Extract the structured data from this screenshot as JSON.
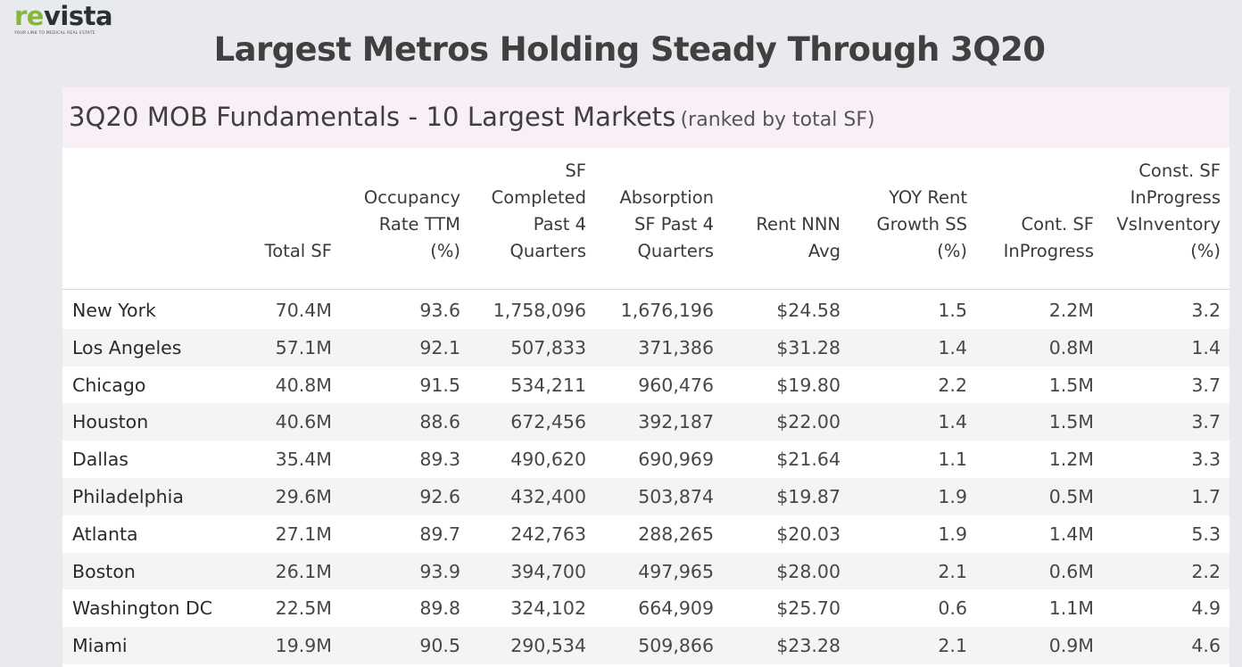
{
  "logo": {
    "word_part1": "re",
    "word_part2": "vista",
    "tagline": "YOUR LINK TO MEDICAL REAL ESTATE",
    "colors": {
      "accent": "#86b73d",
      "dark": "#2d3033"
    }
  },
  "page_title": "Largest Metros Holding Steady Through 3Q20",
  "chart_data": {
    "type": "table",
    "title": "3Q20 MOB Fundamentals - 10 Largest Markets",
    "subtitle": "(ranked by total SF)",
    "columns": [
      "",
      "Total SF",
      "Occupancy\nRate TTM\n(%)",
      "SF\nCompleted\nPast 4\nQuarters",
      "Absorption\nSF Past 4\nQuarters",
      "Rent NNN\nAvg",
      "YOY Rent\nGrowth SS\n(%)",
      "Cont. SF\nInProgress",
      "Const. SF\nInProgress\nVsInventory\n(%)"
    ],
    "rows": [
      [
        "New York",
        "70.4M",
        "93.6",
        "1,758,096",
        "1,676,196",
        "$24.58",
        "1.5",
        "2.2M",
        "3.2"
      ],
      [
        "Los Angeles",
        "57.1M",
        "92.1",
        "507,833",
        "371,386",
        "$31.28",
        "1.4",
        "0.8M",
        "1.4"
      ],
      [
        "Chicago",
        "40.8M",
        "91.5",
        "534,211",
        "960,476",
        "$19.80",
        "2.2",
        "1.5M",
        "3.7"
      ],
      [
        "Houston",
        "40.6M",
        "88.6",
        "672,456",
        "392,187",
        "$22.00",
        "1.4",
        "1.5M",
        "3.7"
      ],
      [
        "Dallas",
        "35.4M",
        "89.3",
        "490,620",
        "690,969",
        "$21.64",
        "1.1",
        "1.2M",
        "3.3"
      ],
      [
        "Philadelphia",
        "29.6M",
        "92.6",
        "432,400",
        "503,874",
        "$19.87",
        "1.9",
        "0.5M",
        "1.7"
      ],
      [
        "Atlanta",
        "27.1M",
        "89.7",
        "242,763",
        "288,265",
        "$20.03",
        "1.9",
        "1.4M",
        "5.3"
      ],
      [
        "Boston",
        "26.1M",
        "93.9",
        "394,700",
        "497,965",
        "$28.00",
        "2.1",
        "0.6M",
        "2.2"
      ],
      [
        "Washington DC",
        "22.5M",
        "89.8",
        "324,102",
        "664,909",
        "$25.70",
        "0.6",
        "1.1M",
        "4.9"
      ],
      [
        "Miami",
        "19.9M",
        "90.5",
        "290,534",
        "509,866",
        "$23.28",
        "2.1",
        "0.9M",
        "4.6"
      ]
    ]
  }
}
